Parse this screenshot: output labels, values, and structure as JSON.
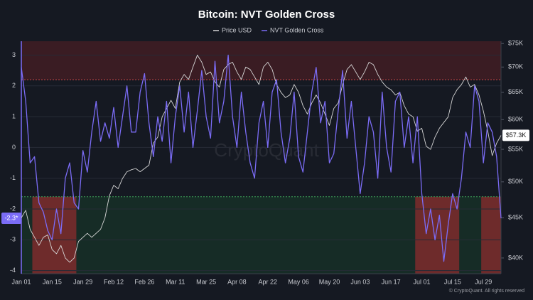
{
  "chart_data": {
    "type": "line",
    "title": "Bitcoin: NVT Golden Cross",
    "categories": [
      "Jan 01",
      null,
      null,
      null,
      null,
      null,
      null,
      "Jan 15",
      null,
      null,
      null,
      null,
      null,
      null,
      "Jan 29",
      null,
      null,
      null,
      null,
      null,
      null,
      "Feb 12",
      null,
      null,
      null,
      null,
      null,
      null,
      "Feb 26",
      null,
      null,
      null,
      null,
      null,
      null,
      "Mar 11",
      null,
      null,
      null,
      null,
      null,
      null,
      "Mar 25",
      null,
      null,
      null,
      null,
      null,
      null,
      "Apr 08",
      null,
      null,
      null,
      null,
      null,
      null,
      "Apr 22",
      null,
      null,
      null,
      null,
      null,
      null,
      "May 06",
      null,
      null,
      null,
      null,
      null,
      null,
      "May 20",
      null,
      null,
      null,
      null,
      null,
      null,
      "Jun 03",
      null,
      null,
      null,
      null,
      null,
      null,
      "Jun 17",
      null,
      null,
      null,
      null,
      null,
      null,
      "Jul 01",
      null,
      null,
      null,
      null,
      null,
      null,
      "Jul 15",
      null,
      null,
      null,
      null,
      null,
      null,
      "Jul 29",
      null,
      null,
      null,
      null
    ],
    "series": [
      {
        "name": "Price USD",
        "color": "#d6d6d6",
        "axis": "y2",
        "values": [
          45000,
          46000,
          43500,
          42500,
          41500,
          42500,
          42800,
          41000,
          40500,
          41500,
          40000,
          39500,
          40000,
          42000,
          42500,
          43000,
          42500,
          43000,
          43500,
          45000,
          48000,
          49500,
          49000,
          50500,
          51500,
          51800,
          52000,
          51500,
          52000,
          52500,
          56000,
          57000,
          60500,
          62000,
          63500,
          62000,
          67000,
          68500,
          67500,
          70000,
          72500,
          71000,
          68500,
          69000,
          67000,
          66000,
          69500,
          70500,
          71000,
          69000,
          67500,
          70000,
          69500,
          68000,
          66500,
          70000,
          71000,
          69500,
          66500,
          65000,
          64000,
          64500,
          66500,
          65000,
          62500,
          61000,
          63000,
          64500,
          63000,
          61000,
          59000,
          62000,
          63000,
          66500,
          69500,
          70500,
          69000,
          67500,
          69000,
          71000,
          70500,
          68500,
          67000,
          66000,
          65500,
          64500,
          65000,
          62500,
          61000,
          60500,
          58000,
          58500,
          55500,
          55000,
          57000,
          58500,
          59500,
          60500,
          64000,
          65500,
          66500,
          68000,
          66000,
          66500,
          64500,
          61500,
          58000,
          54000,
          56000,
          57300
        ],
        "badge": {
          "value": 57300,
          "label": "$57.3K"
        }
      },
      {
        "name": "NVT Golden Cross",
        "color": "#7b6cf6",
        "values": [
          2.6,
          1.5,
          -0.5,
          -0.3,
          -1.8,
          -2.1,
          -2.7,
          -3.0,
          -2.0,
          -2.8,
          -1.0,
          -0.5,
          -1.8,
          -2.0,
          -0.1,
          -0.8,
          0.5,
          1.5,
          0.2,
          0.8,
          0.3,
          1.3,
          0.0,
          1.0,
          2.0,
          0.5,
          0.5,
          1.8,
          2.4,
          0.8,
          -0.3,
          1.0,
          0.2,
          1.5,
          -0.5,
          1.0,
          2.0,
          0.5,
          1.8,
          0.0,
          1.2,
          2.5,
          1.0,
          0.3,
          2.8,
          0.8,
          1.5,
          3.0,
          1.0,
          0.0,
          1.8,
          0.5,
          -0.5,
          -1.0,
          0.8,
          1.5,
          0.0,
          1.8,
          2.2,
          0.5,
          -0.5,
          0.3,
          1.8,
          -0.3,
          -0.8,
          0.5,
          1.8,
          2.6,
          0.8,
          1.5,
          -0.5,
          -0.2,
          1.2,
          2.5,
          0.3,
          1.5,
          0.0,
          -1.5,
          -0.5,
          1.0,
          0.5,
          -1.0,
          1.8,
          0.0,
          -0.8,
          1.5,
          1.8,
          0.0,
          1.0,
          -0.5,
          1.0,
          -1.5,
          -2.8,
          -2.0,
          -3.0,
          -2.2,
          -3.7,
          -2.5,
          -1.5,
          -2.0,
          -1.0,
          0.5,
          0.0,
          2.0,
          1.5,
          -0.5,
          0.8,
          0.5,
          -0.3,
          -2.3
        ],
        "badge": {
          "value": -2.3,
          "label": "-2.3*"
        }
      }
    ],
    "ylim": [
      -4.1,
      3.45
    ],
    "yticks": [
      3,
      2,
      1,
      0,
      -1,
      -2,
      -3,
      -4
    ],
    "y2lim": [
      38200,
      75500
    ],
    "y2_log": true,
    "y2ticks": [
      {
        "value": 75000,
        "label": "$75K"
      },
      {
        "value": 70000,
        "label": "$70K"
      },
      {
        "value": 65000,
        "label": "$65K"
      },
      {
        "value": 60000,
        "label": "$60K"
      },
      {
        "value": 55000,
        "label": "$55K"
      },
      {
        "value": 50000,
        "label": "$50K"
      },
      {
        "value": 45000,
        "label": "$45K"
      },
      {
        "value": 40000,
        "label": "$40K"
      }
    ],
    "upper_threshold": 2.2,
    "lower_threshold": -1.6,
    "highlight_ranges": [
      [
        3,
        12
      ],
      [
        90,
        99
      ],
      [
        105,
        109
      ]
    ],
    "watermark": "CryptoQuant",
    "footer": "© CryptoQuant. All rights reserved"
  }
}
